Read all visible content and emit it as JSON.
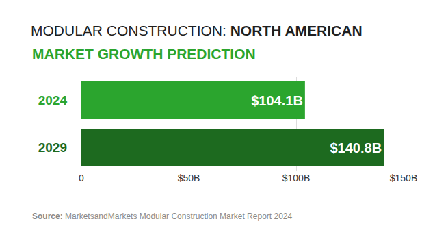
{
  "chart_data": {
    "type": "bar",
    "orientation": "horizontal",
    "title": "MODULAR CONSTRUCTION: NORTH AMERICAN",
    "subtitle": "MARKET GROWTH PREDICTION",
    "categories": [
      "2024",
      "2029"
    ],
    "values": [
      104.1,
      140.8
    ],
    "value_labels": [
      "$104.1B",
      "$140.8B"
    ],
    "data_labels": true,
    "colors": [
      "#2ba52e",
      "#1d6a1f"
    ],
    "xlim": [
      0,
      150
    ],
    "xticks": [
      0,
      {
        "value": 50,
        "label": "$50B"
      },
      {
        "value": 100,
        "label": "$100B"
      },
      {
        "value": 150,
        "label": "$150B"
      }
    ],
    "grid": true,
    "annotations": [
      "Source: MarketsandMarkets Modular Construction Market Report 2024"
    ]
  }
}
